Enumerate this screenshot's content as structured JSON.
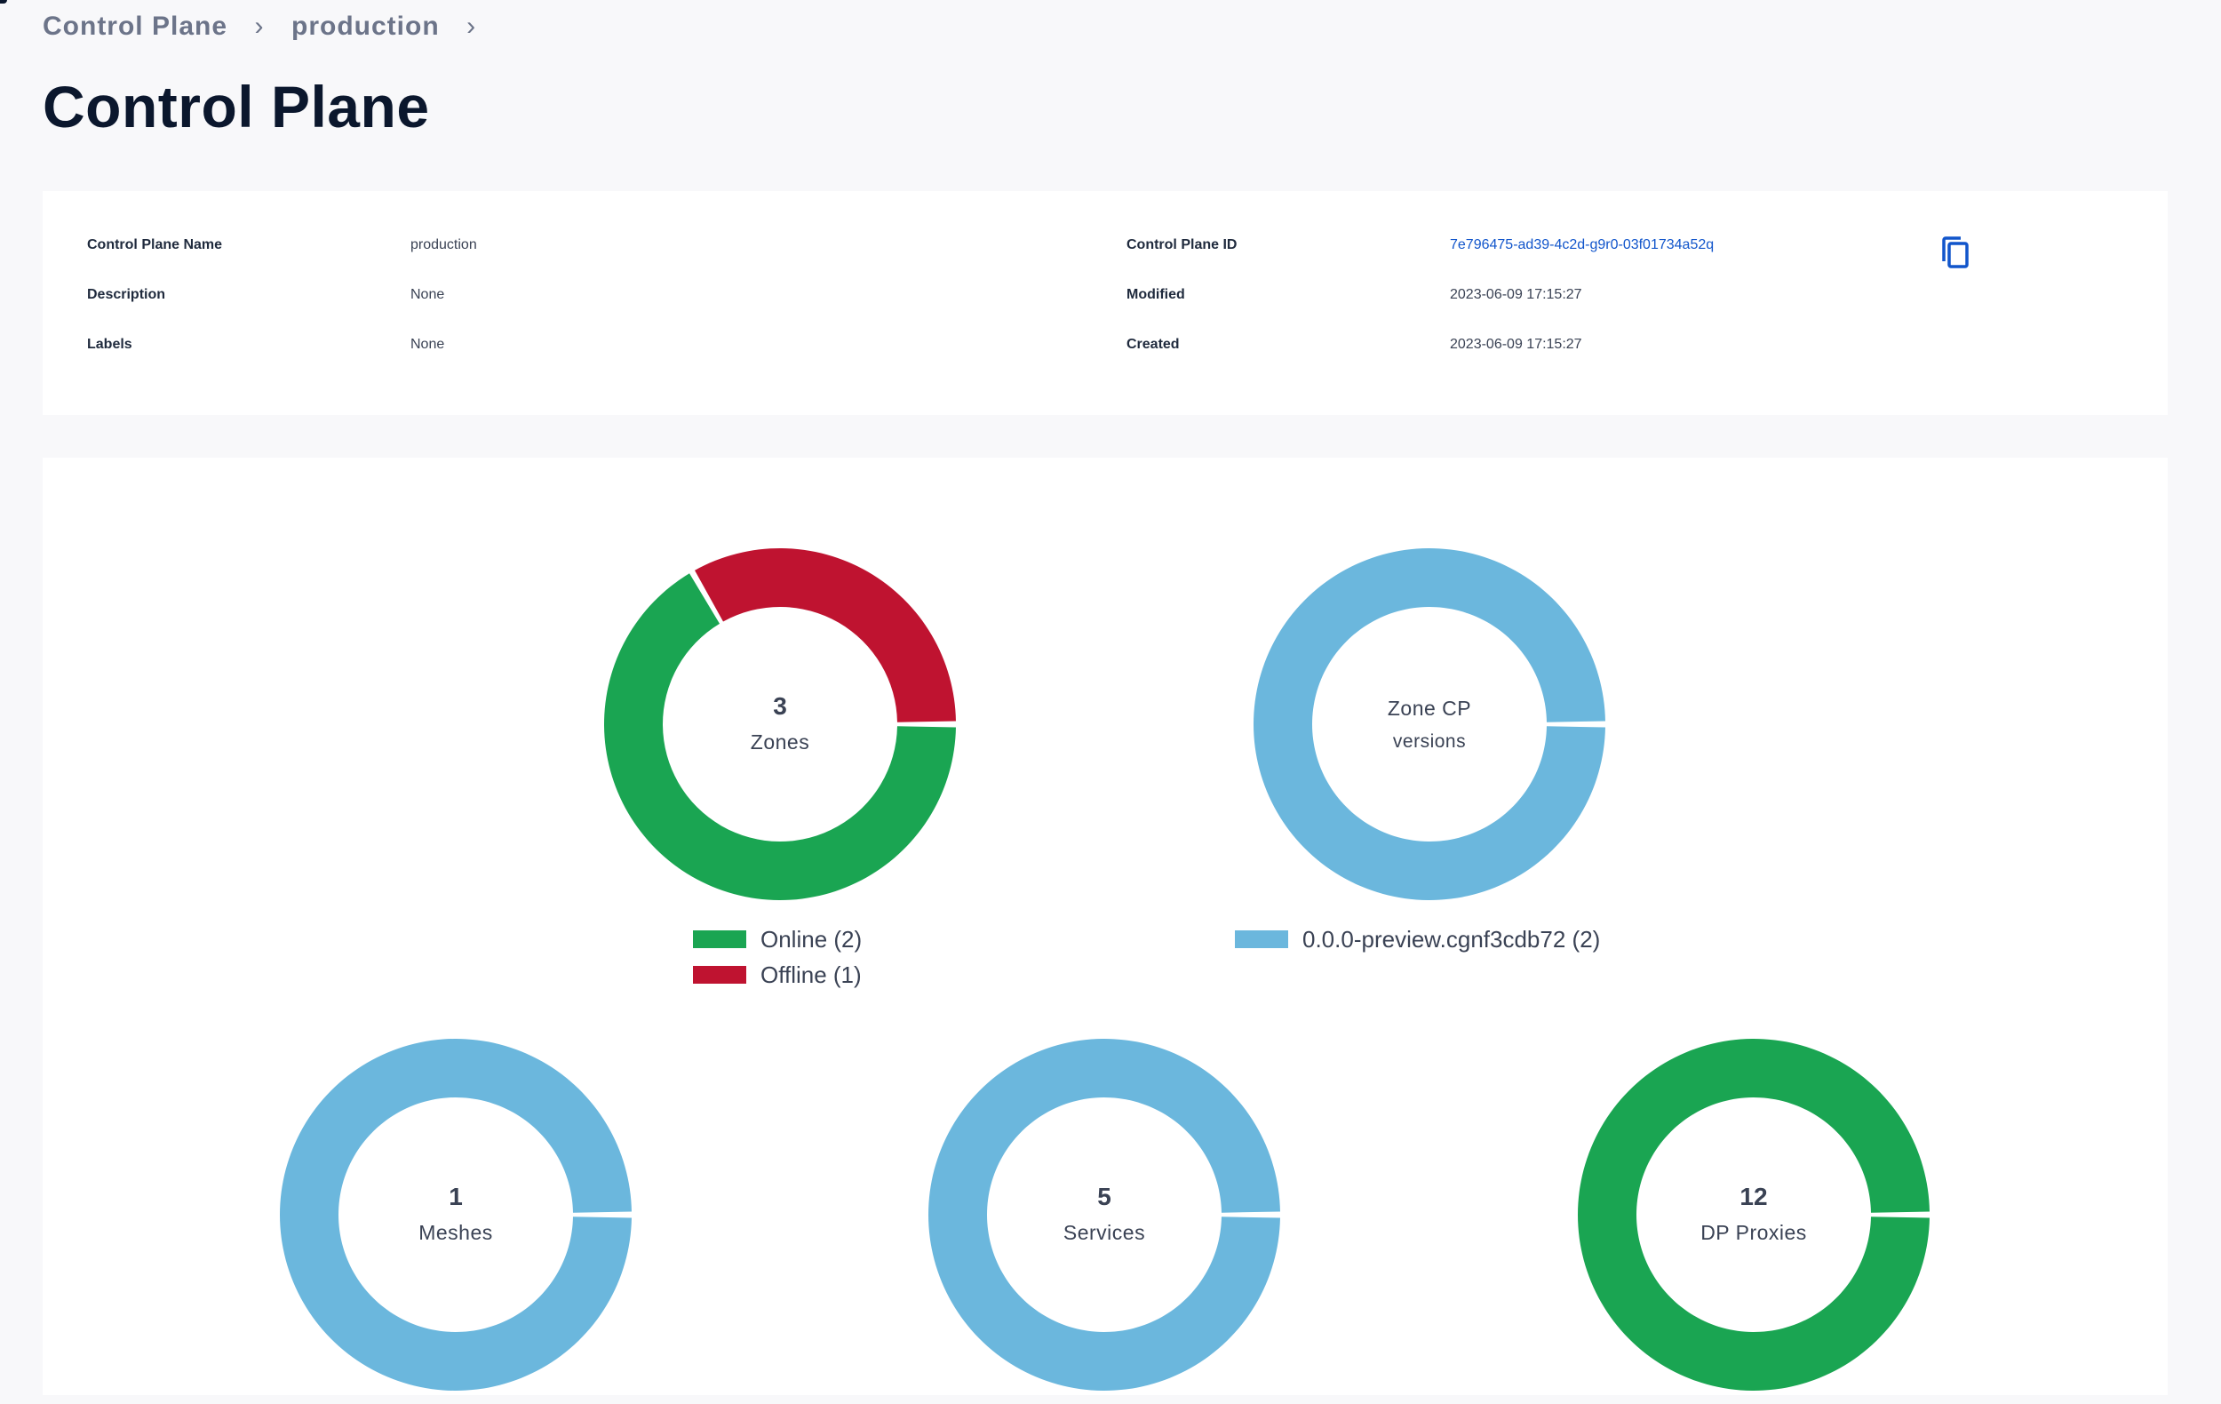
{
  "breadcrumb": {
    "items": [
      {
        "label": "Control Plane"
      },
      {
        "label": "production"
      }
    ]
  },
  "page": {
    "title": "Control Plane"
  },
  "details": {
    "left": [
      {
        "label": "Control Plane Name",
        "value": "production"
      },
      {
        "label": "Description",
        "value": "None"
      },
      {
        "label": "Labels",
        "value": "None"
      }
    ],
    "right": [
      {
        "label": "Control Plane ID",
        "value": "7e796475-ad39-4c2d-g9r0-03f01734a52q",
        "icon": "copy-icon"
      },
      {
        "label": "Modified",
        "value": "2023-06-09 17:15:27"
      },
      {
        "label": "Created",
        "value": "2023-06-09 17:15:27"
      }
    ]
  },
  "colors": {
    "online": "#1aa552",
    "offline": "#bf1330",
    "neutral": "#6bb7dd",
    "link": "#1155cb"
  },
  "chart_data": [
    {
      "type": "pie",
      "title": "Zones",
      "center_value": "3",
      "center_label": "Zones",
      "slices": [
        {
          "name": "Online (2)",
          "value": 2,
          "color": "#1aa552"
        },
        {
          "name": "Offline (1)",
          "value": 1,
          "color": "#bf1330"
        }
      ]
    },
    {
      "type": "pie",
      "title": "Zone CP versions",
      "center_value": "Zone CP",
      "center_label": "versions",
      "slices": [
        {
          "name": "0.0.0-preview.cgnf3cdb72 (2)",
          "value": 2,
          "color": "#6bb7dd"
        }
      ]
    },
    {
      "type": "pie",
      "title": "Meshes",
      "center_value": "1",
      "center_label": "Meshes",
      "slices": [
        {
          "name": "Meshes",
          "value": 1,
          "color": "#6bb7dd"
        }
      ]
    },
    {
      "type": "pie",
      "title": "Services",
      "center_value": "5",
      "center_label": "Services",
      "slices": [
        {
          "name": "Services",
          "value": 5,
          "color": "#6bb7dd"
        }
      ]
    },
    {
      "type": "pie",
      "title": "DP Proxies",
      "center_value": "12",
      "center_label": "DP Proxies",
      "slices": [
        {
          "name": "DP Proxies",
          "value": 12,
          "color": "#1aa552"
        }
      ]
    }
  ]
}
